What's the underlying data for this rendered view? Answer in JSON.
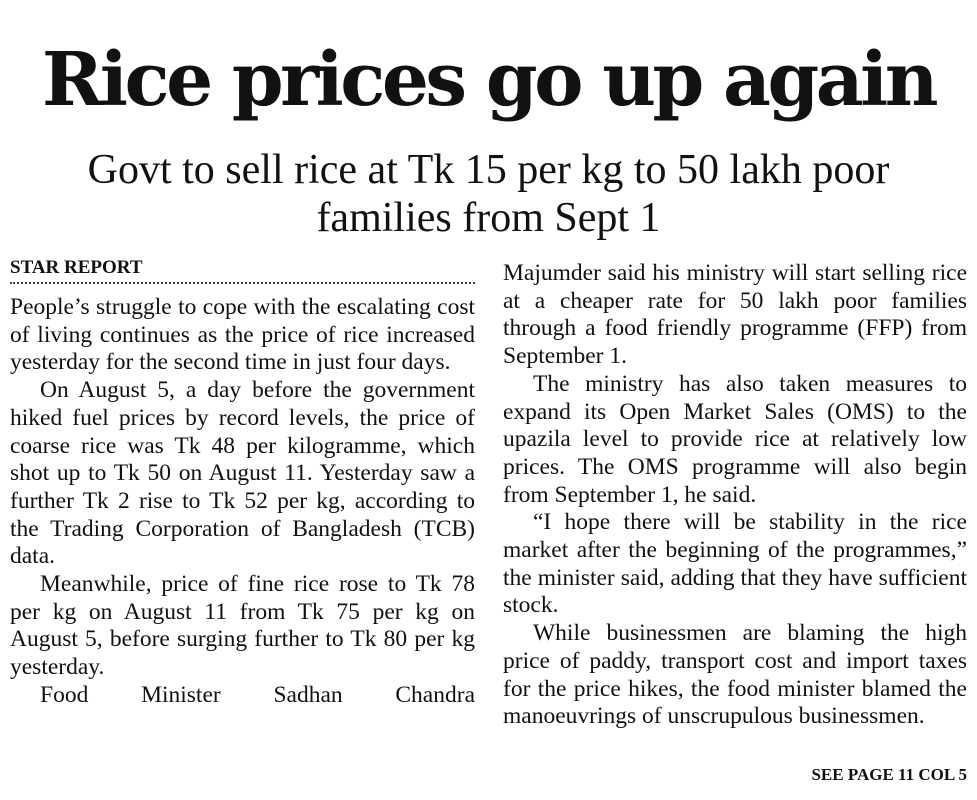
{
  "headline": "Rice prices go up again",
  "subheadline": "Govt to sell rice at Tk 15 per kg to 50 lakh poor families from Sept 1",
  "byline": "STAR REPORT",
  "left_column": {
    "paragraphs": [
      "People’s struggle to cope with the escalating cost of living continues as the price of rice increased yesterday for the second time in just four days.",
      "On August 5, a day before the government hiked fuel prices by record levels, the price of coarse rice was Tk 48 per kilogramme, which shot up to Tk 50 on August 11. Yesterday saw a further Tk 2 rise to Tk 52 per kg, according to the Trading Corporation of Bangladesh (TCB) data.",
      "Meanwhile, price of fine rice rose to Tk 78 per kg on August 11 from Tk 75 per kg on August 5, before surging further to Tk 80 per kg yesterday.",
      "Food Minister Sadhan Chandra"
    ]
  },
  "right_column": {
    "paragraphs": [
      "Majumder said his ministry will start selling rice at a cheaper rate for 50 lakh poor families through a food friendly programme (FFP) from September 1.",
      "The ministry has also taken measures to expand its Open Market Sales (OMS) to the upazila level to provide rice at relatively low prices. The OMS programme will also begin from September 1, he said.",
      "“I hope there will be stability in the rice market after the beginning of the programmes,” the minister said, adding that they have sufficient stock.",
      "While businessmen are blaming the high price of paddy, transport cost and import taxes for the price hikes, the food minister blamed the manoeuvrings of unscrupulous businessmen."
    ]
  },
  "jump_line": "SEE PAGE 11 COL 5"
}
